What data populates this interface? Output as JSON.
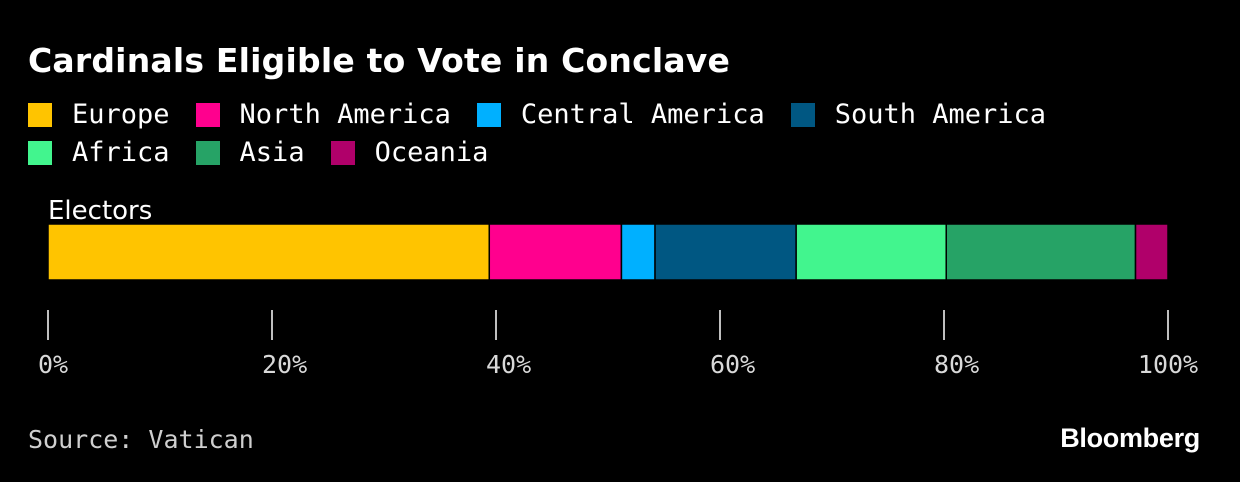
{
  "chart_data": {
    "type": "bar",
    "orientation": "horizontal-stacked",
    "title": "Cardinals Eligible to Vote in Conclave",
    "categories": [
      "Electors"
    ],
    "series": [
      {
        "name": "Europe",
        "values": [
          39.4
        ],
        "color": "#ffc400"
      },
      {
        "name": "North America",
        "values": [
          11.8
        ],
        "color": "#ff008e"
      },
      {
        "name": "Central America",
        "values": [
          3.0
        ],
        "color": "#00b0ff"
      },
      {
        "name": "South America",
        "values": [
          12.6
        ],
        "color": "#005782"
      },
      {
        "name": "Africa",
        "values": [
          13.4
        ],
        "color": "#42f58e"
      },
      {
        "name": "Asia",
        "values": [
          16.9
        ],
        "color": "#26a366"
      },
      {
        "name": "Oceania",
        "values": [
          2.9
        ],
        "color": "#b0006a"
      }
    ],
    "xlim": [
      0,
      100
    ],
    "x_ticks": [
      "0%",
      "20%",
      "40%",
      "60%",
      "80%",
      "100%"
    ],
    "x_tick_values": [
      0,
      20,
      40,
      60,
      80,
      100
    ],
    "legend_position": "top",
    "grid": false
  },
  "source": "Source: Vatican",
  "brand": "Bloomberg"
}
